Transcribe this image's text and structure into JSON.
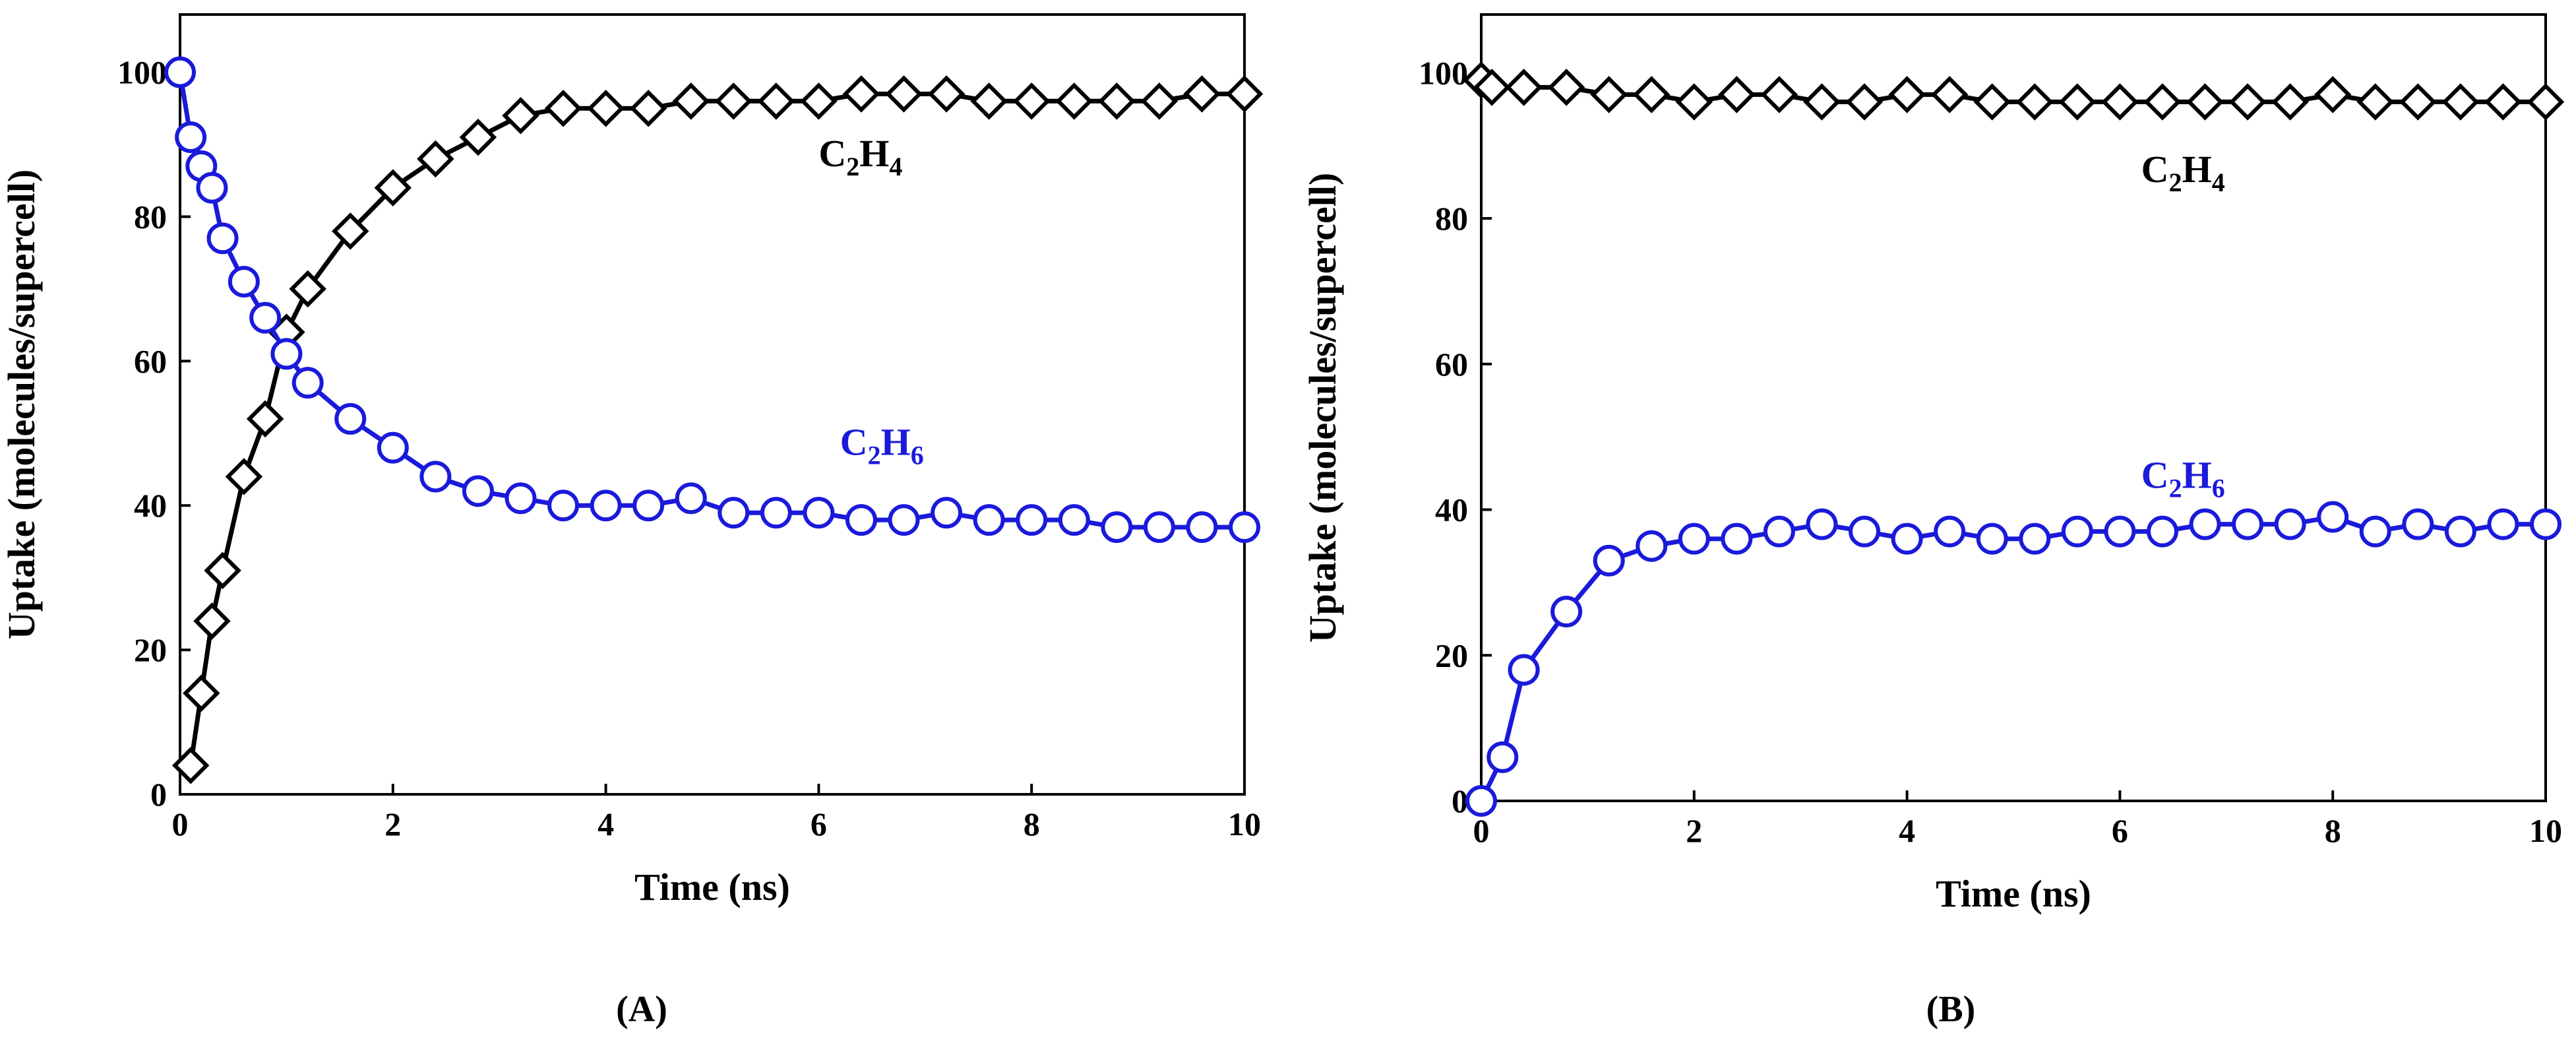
{
  "figure": {
    "panel_labels": [
      "(A)",
      "(B)"
    ]
  },
  "chart_data": [
    {
      "type": "line",
      "panel": "(A)",
      "xlabel": "Time (ns)",
      "ylabel": "Uptake (molecules/supercell)",
      "xlim": [
        0,
        10
      ],
      "ylim": [
        0,
        108
      ],
      "xticks": [
        0,
        2,
        4,
        6,
        8,
        10
      ],
      "yticks": [
        0,
        20,
        40,
        60,
        80,
        100
      ],
      "grid": false,
      "series": [
        {
          "name": "C2H4",
          "label_main": "C",
          "label_sub1": "2",
          "label_mid": "H",
          "label_sub2": "4",
          "color": "#000000",
          "marker": "diamond",
          "label_at": [
            6.0,
            87
          ],
          "x": [
            0.1,
            0.2,
            0.3,
            0.4,
            0.6,
            0.8,
            1.0,
            1.2,
            1.6,
            2.0,
            2.4,
            2.8,
            3.2,
            3.6,
            4.0,
            4.4,
            4.8,
            5.2,
            5.6,
            6.0,
            6.4,
            6.8,
            7.2,
            7.6,
            8.0,
            8.4,
            8.8,
            9.2,
            9.6,
            10.0
          ],
          "y": [
            4,
            14,
            24,
            31,
            44,
            52,
            64,
            70,
            78,
            84,
            88,
            91,
            94,
            95,
            95,
            95,
            96,
            96,
            96,
            96,
            97,
            97,
            97,
            96,
            96,
            96,
            96,
            96,
            97,
            97
          ]
        },
        {
          "name": "C2H6",
          "label_main": "C",
          "label_sub1": "2",
          "label_mid": "H",
          "label_sub2": "6",
          "color": "#1a1adb",
          "marker": "circle",
          "label_at": [
            6.2,
            47
          ],
          "x": [
            0.0,
            0.1,
            0.2,
            0.3,
            0.4,
            0.6,
            0.8,
            1.0,
            1.2,
            1.6,
            2.0,
            2.4,
            2.8,
            3.2,
            3.6,
            4.0,
            4.4,
            4.8,
            5.2,
            5.6,
            6.0,
            6.4,
            6.8,
            7.2,
            7.6,
            8.0,
            8.4,
            8.8,
            9.2,
            9.6,
            10.0
          ],
          "y": [
            100,
            91,
            87,
            84,
            77,
            71,
            66,
            61,
            57,
            52,
            48,
            44,
            42,
            41,
            40,
            40,
            40,
            41,
            39,
            39,
            39,
            38,
            38,
            39,
            38,
            38,
            38,
            37,
            37,
            37,
            37
          ]
        }
      ]
    },
    {
      "type": "line",
      "panel": "(B)",
      "xlabel": "Time (ns)",
      "ylabel": "Uptake (molecules/supercell)",
      "xlim": [
        0,
        10
      ],
      "ylim": [
        0,
        108
      ],
      "xticks": [
        0,
        2,
        4,
        6,
        8,
        10
      ],
      "yticks": [
        0,
        20,
        40,
        60,
        80,
        100
      ],
      "grid": false,
      "series": [
        {
          "name": "C2H4",
          "label_main": "C",
          "label_sub1": "2",
          "label_mid": "H",
          "label_sub2": "4",
          "color": "#000000",
          "marker": "diamond",
          "label_at": [
            6.2,
            85
          ],
          "x": [
            0.0,
            0.1,
            0.4,
            0.8,
            1.2,
            1.6,
            2.0,
            2.4,
            2.8,
            3.2,
            3.6,
            4.0,
            4.4,
            4.8,
            5.2,
            5.6,
            6.0,
            6.4,
            6.8,
            7.2,
            7.6,
            8.0,
            8.4,
            8.8,
            9.2,
            9.6,
            10.0
          ],
          "y": [
            99,
            98,
            98,
            98,
            97,
            97,
            96,
            97,
            97,
            96,
            96,
            97,
            97,
            96,
            96,
            96,
            96,
            96,
            96,
            96,
            96,
            97,
            96,
            96,
            96,
            96,
            96
          ]
        },
        {
          "name": "C2H6",
          "label_main": "C",
          "label_sub1": "2",
          "label_mid": "H",
          "label_sub2": "6",
          "color": "#1a1adb",
          "marker": "circle",
          "label_at": [
            6.2,
            43
          ],
          "x": [
            0.0,
            0.2,
            0.4,
            0.8,
            1.2,
            1.6,
            2.0,
            2.4,
            2.8,
            3.2,
            3.6,
            4.0,
            4.4,
            4.8,
            5.2,
            5.6,
            6.0,
            6.4,
            6.8,
            7.2,
            7.6,
            8.0,
            8.4,
            8.8,
            9.2,
            9.6,
            10.0
          ],
          "y": [
            0,
            6,
            18,
            26,
            33,
            35,
            36,
            36,
            37,
            38,
            37,
            36,
            37,
            36,
            36,
            37,
            37,
            37,
            38,
            38,
            38,
            39,
            37,
            38,
            37,
            38,
            38
          ]
        }
      ]
    }
  ]
}
